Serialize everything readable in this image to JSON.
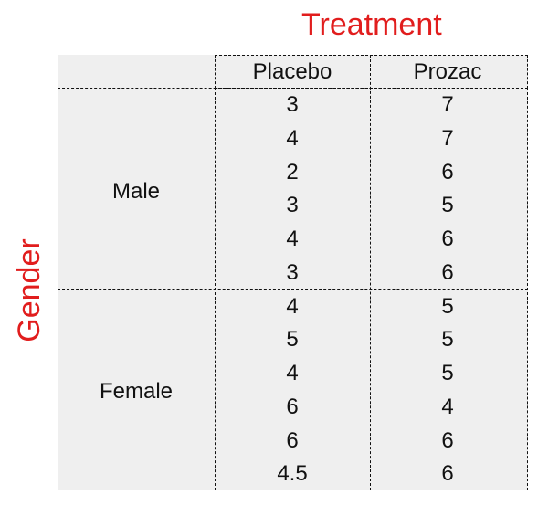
{
  "titles": {
    "treatment": "Treatment",
    "gender": "Gender"
  },
  "table": {
    "columns": [
      "Placebo",
      "Prozac"
    ],
    "groups": [
      {
        "label": "Male",
        "rows": [
          [
            "3",
            "7"
          ],
          [
            "4",
            "7"
          ],
          [
            "2",
            "6"
          ],
          [
            "3",
            "5"
          ],
          [
            "4",
            "6"
          ],
          [
            "3",
            "6"
          ]
        ]
      },
      {
        "label": "Female",
        "rows": [
          [
            "4",
            "5"
          ],
          [
            "5",
            "5"
          ],
          [
            "4",
            "5"
          ],
          [
            "6",
            "4"
          ],
          [
            "6",
            "6"
          ],
          [
            "4.5",
            "6"
          ]
        ]
      }
    ]
  },
  "colors": {
    "accent": "#e11d1d",
    "table_background": "#efefef",
    "text": "#111111",
    "border": "#111111"
  }
}
